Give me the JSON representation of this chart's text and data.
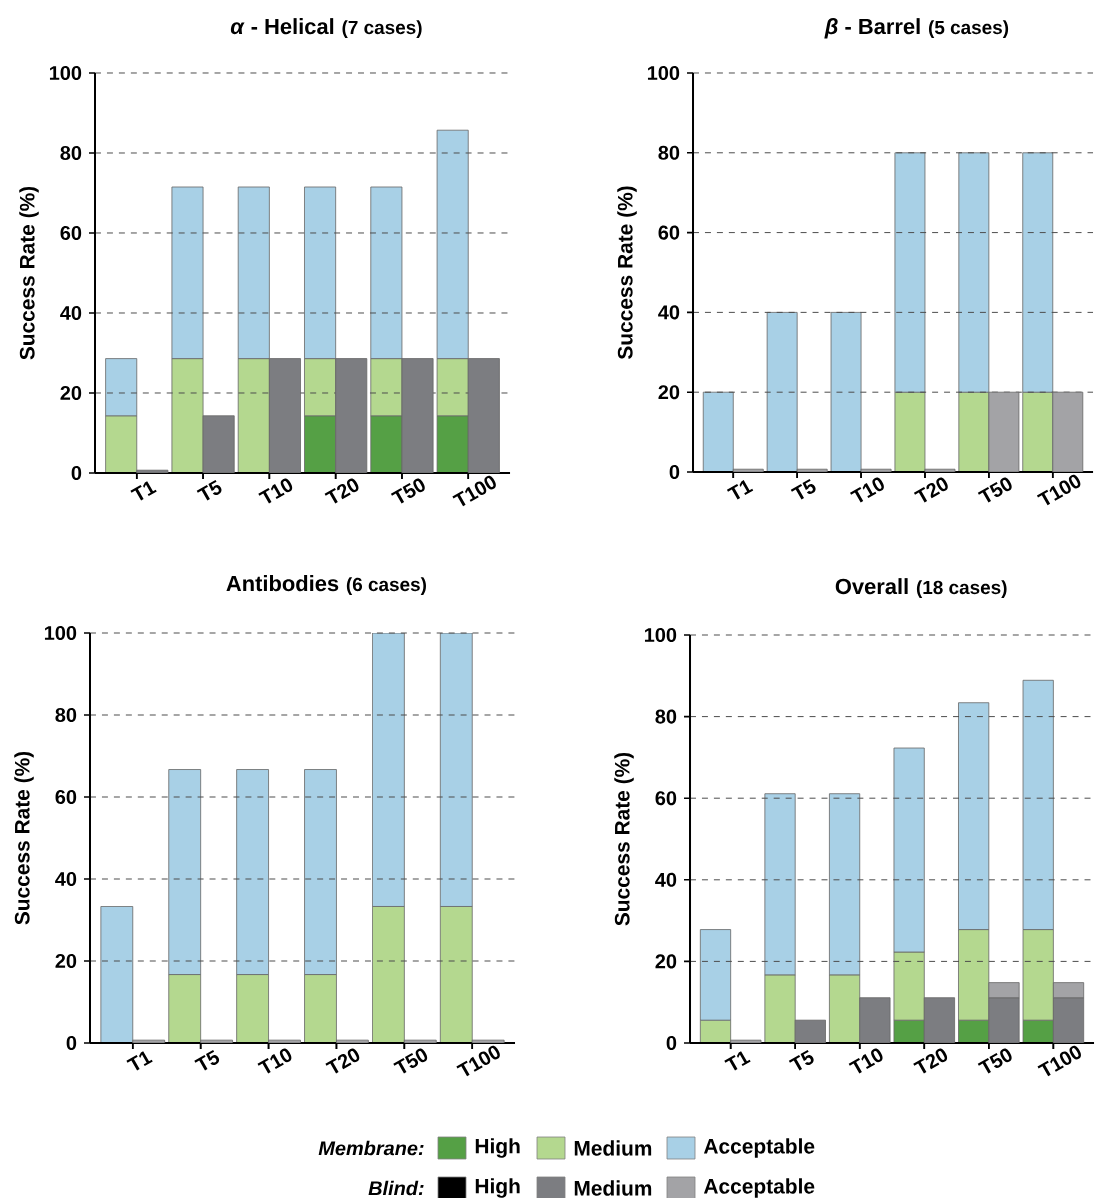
{
  "chart_data": [
    {
      "type": "bar",
      "title": "*α* - Helical",
      "subtitle": "(7 cases)",
      "ylabel": "Success Rate (%)",
      "categories": [
        "T1",
        "T5",
        "T10",
        "T20",
        "T50",
        "T100"
      ],
      "stacked": true,
      "ylim": [
        0,
        100
      ],
      "tick_labels": "x",
      "series": [
        {
          "color": "#55a045",
          "values": [
            0,
            0,
            0,
            14.3,
            14.3,
            14.3
          ]
        },
        {
          "color": "#b4d88f",
          "values": [
            14.3,
            28.6,
            28.6,
            14.3,
            14.3,
            14.3
          ]
        },
        {
          "color": "#a8d0e6",
          "values": [
            14.3,
            42.9,
            42.9,
            42.9,
            42.9,
            57.1
          ]
        }
      ]
    },
    {
      "type": "bar",
      "categories": [
        null,
        null,
        null,
        null,
        null,
        null
      ],
      "stacked": true,
      "ylim": [
        0,
        100
      ],
      "yticks": [
        0,
        20,
        40,
        60,
        80,
        100
      ],
      "tick_labels": "y",
      "grid": "y",
      "series": [
        {
          "color": "#7c7d81",
          "values": [
            0.7,
            14.3,
            28.6,
            28.6,
            28.6,
            28.6
          ]
        }
      ]
    },
    {
      "type": "bar",
      "title": "*β* - Barrel",
      "subtitle": "(5 cases)",
      "ylabel": "Success Rate (%)",
      "categories": [
        "T1",
        "T5",
        "T10",
        "T20",
        "T50",
        "T100"
      ],
      "stacked": true,
      "ylim": [
        0,
        100
      ],
      "tick_labels": "x",
      "series": [
        {
          "color": "#b4d88f",
          "values": [
            0,
            0,
            0,
            20,
            20,
            20
          ]
        },
        {
          "color": "#a8d0e6",
          "values": [
            20,
            40,
            40,
            60,
            60,
            60
          ]
        }
      ]
    },
    {
      "type": "bar",
      "categories": [
        null,
        null,
        null,
        null,
        null,
        null
      ],
      "stacked": true,
      "ylim": [
        0,
        100
      ],
      "yticks": [
        0,
        20,
        40,
        60,
        80,
        100
      ],
      "tick_labels": "y",
      "grid": "y",
      "series": [
        {
          "color": "#a3a3a6",
          "values": [
            0.7,
            0.7,
            0.7,
            0.7,
            20,
            20
          ]
        }
      ]
    },
    {
      "type": "bar",
      "title": "Antibodies",
      "subtitle": "(6 cases)",
      "ylabel": "Success Rate (%)",
      "categories": [
        "T1",
        "T5",
        "T10",
        "T20",
        "T50",
        "T100"
      ],
      "stacked": true,
      "ylim": [
        0,
        100
      ],
      "tick_labels": "x",
      "series": [
        {
          "color": "#b4d88f",
          "values": [
            0,
            16.7,
            16.7,
            16.7,
            33.3,
            33.3
          ]
        },
        {
          "color": "#a8d0e6",
          "values": [
            33.3,
            50,
            50,
            50,
            66.7,
            66.7
          ]
        }
      ]
    },
    {
      "type": "bar",
      "categories": [
        null,
        null,
        null,
        null,
        null,
        null
      ],
      "stacked": true,
      "ylim": [
        0,
        100
      ],
      "yticks": [
        0,
        20,
        40,
        60,
        80,
        100
      ],
      "tick_labels": "y",
      "grid": "y",
      "series": [
        {
          "color": "#a3a3a6",
          "values": [
            0.7,
            0.7,
            0.7,
            0.7,
            0.7,
            0.7
          ]
        }
      ]
    },
    {
      "type": "bar",
      "title": "Overall",
      "subtitle": "(18 cases)",
      "ylabel": "Success Rate (%)",
      "categories": [
        "T1",
        "T5",
        "T10",
        "T20",
        "T50",
        "T100"
      ],
      "stacked": true,
      "ylim": [
        0,
        100
      ],
      "tick_labels": "x",
      "legend": "bottom",
      "legend_title": "Membrane:",
      "series": [
        {
          "name": "High",
          "color": "#55a045",
          "values": [
            0,
            0,
            0,
            5.6,
            5.6,
            5.6
          ]
        },
        {
          "name": "Medium",
          "color": "#b4d88f",
          "values": [
            5.6,
            16.7,
            16.7,
            16.7,
            22.2,
            22.2
          ]
        },
        {
          "name": "Acceptable",
          "color": "#a8d0e6",
          "values": [
            22.2,
            44.4,
            44.4,
            50,
            55.6,
            61.1
          ]
        }
      ]
    },
    {
      "type": "bar",
      "categories": [
        null,
        null,
        null,
        null,
        null,
        null
      ],
      "stacked": true,
      "ylim": [
        0,
        100
      ],
      "yticks": [
        0,
        20,
        40,
        60,
        80,
        100
      ],
      "tick_labels": "y",
      "grid": "y",
      "legend": "bottom",
      "legend_title": "Blind:",
      "series": [
        {
          "name": "High",
          "color": "#000000",
          "values": [
            0,
            0,
            0,
            0,
            0,
            0
          ]
        },
        {
          "name": "Medium",
          "color": "#7c7d81",
          "values": [
            0,
            5.6,
            11.1,
            11.1,
            11.1,
            11.1
          ]
        },
        {
          "name": "Acceptable",
          "color": "#a3a3a6",
          "values": [
            0.7,
            0,
            0,
            0,
            3.7,
            3.7
          ]
        }
      ]
    }
  ]
}
